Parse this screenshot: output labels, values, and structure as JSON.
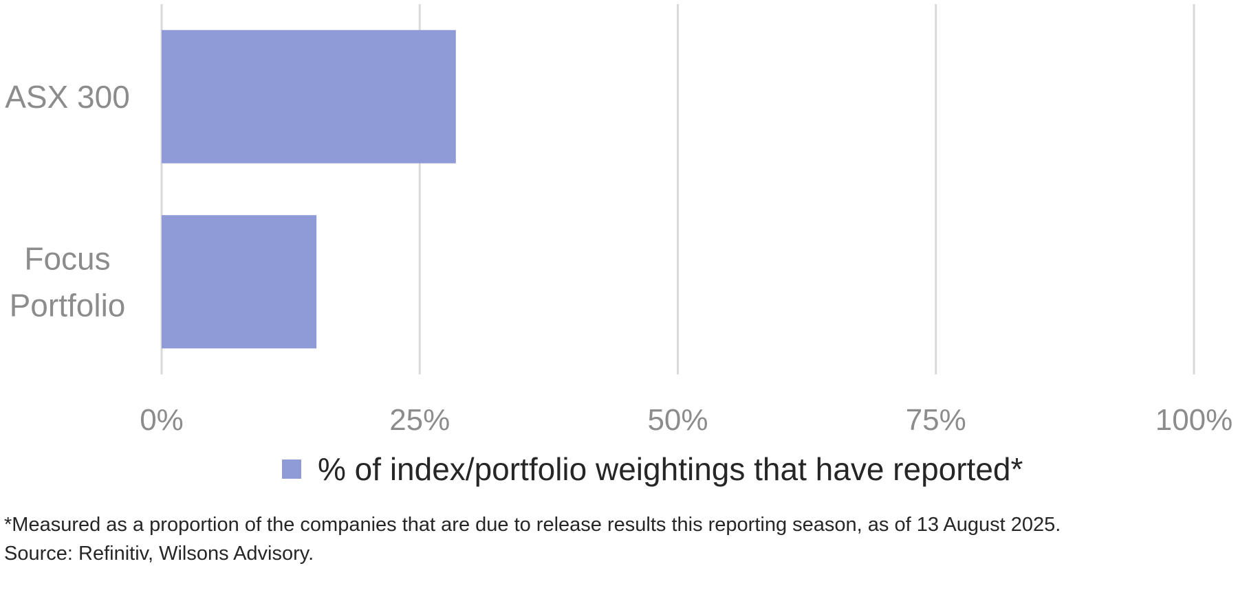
{
  "chart_data": {
    "type": "bar",
    "orientation": "horizontal",
    "categories": [
      "ASX 300",
      "Focus Portfolio"
    ],
    "category_lines": [
      [
        "ASX 300"
      ],
      [
        "Focus",
        "Portfolio"
      ]
    ],
    "series": [
      {
        "name": "% of index/portfolio weightings that have reported*",
        "values": [
          28.5,
          15
        ]
      }
    ],
    "xlim": [
      0,
      100
    ],
    "ticks": [
      0,
      25,
      50,
      75,
      100
    ],
    "tick_labels": [
      "0%",
      "25%",
      "50%",
      "75%",
      "100%"
    ],
    "grid": true,
    "legend_position": "bottom",
    "bar_color": "#8e9bd7",
    "grid_color": "#d9d9d9"
  },
  "footnotes": [
    "*Measured as a proportion of the companies that are due to release results this reporting season, as of 13 August 2025.",
    "Source: Refinitiv, Wilsons Advisory."
  ]
}
